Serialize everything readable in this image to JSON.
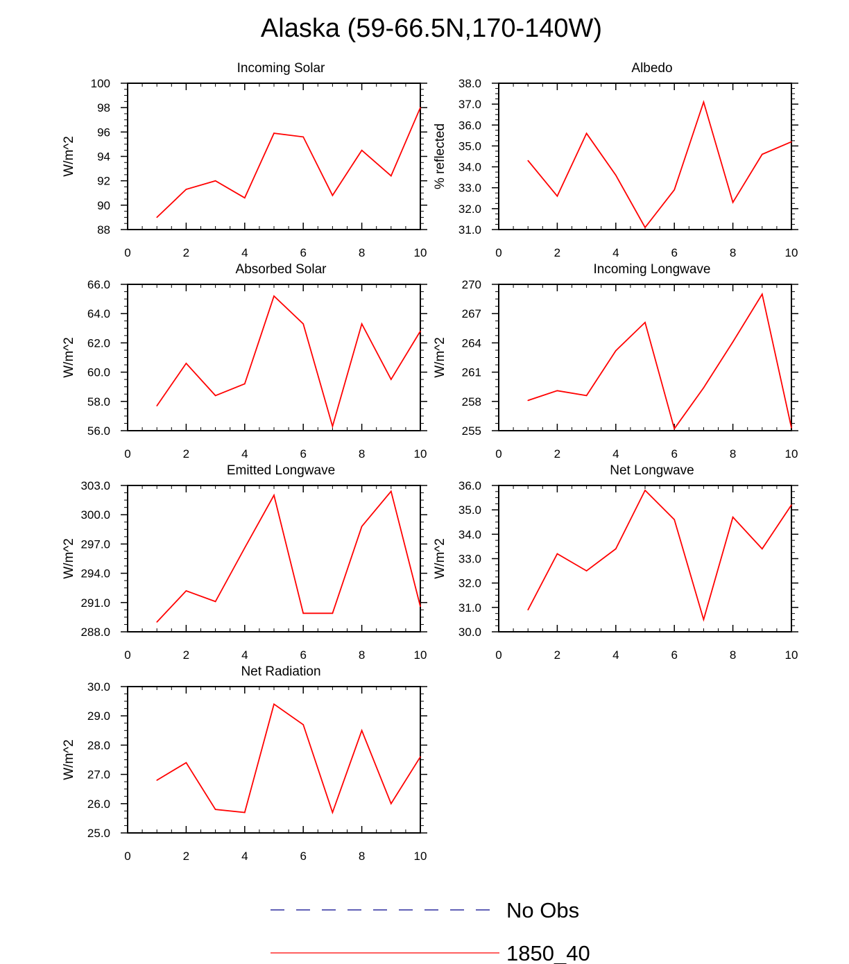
{
  "title": "Alaska (59-66.5N,170-140W)",
  "colors": {
    "series": "#ff0000",
    "obs": "#00008b",
    "axis": "#000000"
  },
  "legend": {
    "items": [
      {
        "label": "No Obs",
        "style": "dashed",
        "color": "#00008b"
      },
      {
        "label": "1850_40",
        "style": "solid",
        "color": "#ff0000"
      }
    ]
  },
  "chart_data": [
    {
      "type": "line",
      "title": "Incoming Solar",
      "ylabel": "W/m^2",
      "xlim": [
        0,
        10
      ],
      "xticks": [
        "0",
        "2",
        "4",
        "6",
        "8",
        "10"
      ],
      "ylim": [
        88,
        100
      ],
      "yticks": [
        "88",
        "90",
        "92",
        "94",
        "96",
        "98",
        "100"
      ],
      "series": [
        {
          "name": "1850_40",
          "x": [
            1,
            2,
            3,
            4,
            5,
            6,
            7,
            8,
            9,
            10
          ],
          "values": [
            89.0,
            91.3,
            92.0,
            90.6,
            95.9,
            95.6,
            90.8,
            94.5,
            92.4,
            98.0
          ]
        }
      ]
    },
    {
      "type": "line",
      "title": "Albedo",
      "ylabel": "% reflected",
      "xlim": [
        0,
        10
      ],
      "xticks": [
        "0",
        "2",
        "4",
        "6",
        "8",
        "10"
      ],
      "ylim": [
        31,
        38
      ],
      "yticks": [
        "31.0",
        "32.0",
        "33.0",
        "34.0",
        "35.0",
        "36.0",
        "37.0",
        "38.0"
      ],
      "series": [
        {
          "name": "1850_40",
          "x": [
            1,
            2,
            3,
            4,
            5,
            6,
            7,
            8,
            9,
            10
          ],
          "values": [
            34.3,
            32.6,
            35.6,
            33.6,
            31.1,
            32.9,
            37.1,
            32.3,
            34.6,
            35.2
          ]
        }
      ]
    },
    {
      "type": "line",
      "title": "Absorbed Solar",
      "ylabel": "W/m^2",
      "xlim": [
        0,
        10
      ],
      "xticks": [
        "0",
        "2",
        "4",
        "6",
        "8",
        "10"
      ],
      "ylim": [
        56,
        66
      ],
      "yticks": [
        "56.0",
        "58.0",
        "60.0",
        "62.0",
        "64.0",
        "66.0"
      ],
      "series": [
        {
          "name": "1850_40",
          "x": [
            1,
            2,
            3,
            4,
            5,
            6,
            7,
            8,
            9,
            10
          ],
          "values": [
            57.7,
            60.6,
            58.4,
            59.2,
            65.2,
            63.3,
            56.3,
            63.3,
            59.5,
            62.8
          ]
        }
      ]
    },
    {
      "type": "line",
      "title": "Incoming Longwave",
      "ylabel": "W/m^2",
      "xlim": [
        0,
        10
      ],
      "xticks": [
        "0",
        "2",
        "4",
        "6",
        "8",
        "10"
      ],
      "ylim": [
        255,
        270
      ],
      "yticks": [
        "255",
        "258",
        "261",
        "264",
        "267",
        "270"
      ],
      "series": [
        {
          "name": "1850_40",
          "x": [
            1,
            2,
            3,
            4,
            5,
            6,
            7,
            8,
            9,
            10
          ],
          "values": [
            258.1,
            259.1,
            258.6,
            263.2,
            266.1,
            255.2,
            259.4,
            264.1,
            269.0,
            255.3
          ]
        }
      ]
    },
    {
      "type": "line",
      "title": "Emitted Longwave",
      "ylabel": "W/m^2",
      "xlim": [
        0,
        10
      ],
      "xticks": [
        "0",
        "2",
        "4",
        "6",
        "8",
        "10"
      ],
      "ylim": [
        288,
        303
      ],
      "yticks": [
        "288.0",
        "291.0",
        "294.0",
        "297.0",
        "300.0",
        "303.0"
      ],
      "series": [
        {
          "name": "1850_40",
          "x": [
            1,
            2,
            3,
            4,
            5,
            6,
            7,
            8,
            9,
            10
          ],
          "values": [
            289.0,
            292.2,
            291.1,
            296.6,
            302.0,
            289.9,
            289.9,
            298.8,
            302.4,
            290.6
          ]
        }
      ]
    },
    {
      "type": "line",
      "title": "Net Longwave",
      "ylabel": "W/m^2",
      "xlim": [
        0,
        10
      ],
      "xticks": [
        "0",
        "2",
        "4",
        "6",
        "8",
        "10"
      ],
      "ylim": [
        30,
        36
      ],
      "yticks": [
        "30.0",
        "31.0",
        "32.0",
        "33.0",
        "34.0",
        "35.0",
        "36.0"
      ],
      "series": [
        {
          "name": "1850_40",
          "x": [
            1,
            2,
            3,
            4,
            5,
            6,
            7,
            8,
            9,
            10
          ],
          "values": [
            30.9,
            33.2,
            32.5,
            33.4,
            35.8,
            34.6,
            30.5,
            34.7,
            33.4,
            35.2
          ]
        }
      ]
    },
    {
      "type": "line",
      "title": "Net Radiation",
      "ylabel": "W/m^2",
      "xlim": [
        0,
        10
      ],
      "xticks": [
        "0",
        "2",
        "4",
        "6",
        "8",
        "10"
      ],
      "ylim": [
        25,
        30
      ],
      "yticks": [
        "25.0",
        "26.0",
        "27.0",
        "28.0",
        "29.0",
        "30.0"
      ],
      "series": [
        {
          "name": "1850_40",
          "x": [
            1,
            2,
            3,
            4,
            5,
            6,
            7,
            8,
            9,
            10
          ],
          "values": [
            26.8,
            27.4,
            25.8,
            25.7,
            29.4,
            28.7,
            25.7,
            28.5,
            26.0,
            27.6
          ]
        }
      ]
    }
  ]
}
